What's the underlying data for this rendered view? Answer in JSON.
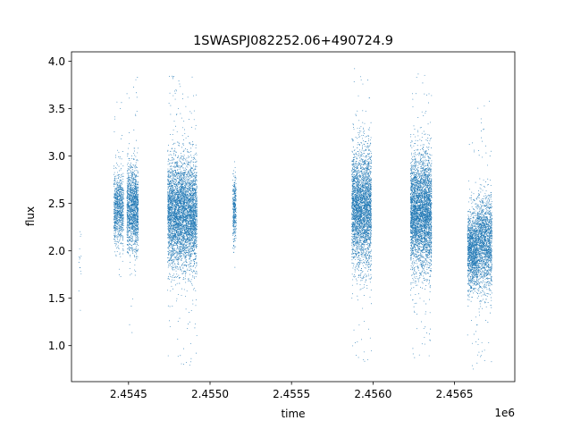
{
  "chart_data": {
    "type": "scatter",
    "title": "1SWASPJ082252.06+490724.9",
    "xlabel": "time",
    "ylabel": "flux",
    "x_offset_label": "1e6",
    "xlim": [
      2454150,
      2456870
    ],
    "ylim": [
      0.62,
      4.1
    ],
    "x_ticks": [
      2454500,
      2455000,
      2455500,
      2456000,
      2456500
    ],
    "x_tick_labels": [
      "2.4545",
      "2.4550",
      "2.4555",
      "2.4560",
      "2.4565"
    ],
    "y_ticks": [
      1.0,
      1.5,
      2.0,
      2.5,
      3.0,
      3.5,
      4.0
    ],
    "y_tick_labels": [
      "1.0",
      "1.5",
      "2.0",
      "2.5",
      "3.0",
      "3.5",
      "4.0"
    ],
    "grid": false,
    "marker_color": "#1f77b4",
    "series": [
      {
        "clusters": [
          {
            "x_start": 2454195,
            "x_end": 2454210,
            "y_mean": 2.0,
            "y_sd": 0.3,
            "y_min": 1.2,
            "y_max": 2.45,
            "count": 15
          },
          {
            "x_start": 2454410,
            "x_end": 2454470,
            "y_mean": 2.45,
            "y_sd": 0.18,
            "y_min": 1.55,
            "y_max": 3.7,
            "count": 900
          },
          {
            "x_start": 2454490,
            "x_end": 2454560,
            "y_mean": 2.45,
            "y_sd": 0.22,
            "y_min": 0.95,
            "y_max": 3.95,
            "count": 1500
          },
          {
            "x_start": 2454740,
            "x_end": 2454920,
            "y_mean": 2.4,
            "y_sd": 0.28,
            "y_min": 0.78,
            "y_max": 3.9,
            "count": 4500
          },
          {
            "x_start": 2455140,
            "x_end": 2455160,
            "y_mean": 2.45,
            "y_sd": 0.17,
            "y_min": 1.8,
            "y_max": 3.05,
            "count": 350
          },
          {
            "x_start": 2455870,
            "x_end": 2455990,
            "y_mean": 2.45,
            "y_sd": 0.3,
            "y_min": 0.78,
            "y_max": 3.95,
            "count": 3200
          },
          {
            "x_start": 2456230,
            "x_end": 2456360,
            "y_mean": 2.4,
            "y_sd": 0.3,
            "y_min": 0.85,
            "y_max": 3.95,
            "count": 3800
          },
          {
            "x_start": 2456580,
            "x_end": 2456640,
            "y_mean": 2.0,
            "y_sd": 0.2,
            "y_min": 0.75,
            "y_max": 3.2,
            "count": 1300
          },
          {
            "x_start": 2456640,
            "x_end": 2456730,
            "y_mean": 2.1,
            "y_sd": 0.25,
            "y_min": 0.78,
            "y_max": 3.6,
            "count": 1700
          }
        ]
      }
    ]
  }
}
